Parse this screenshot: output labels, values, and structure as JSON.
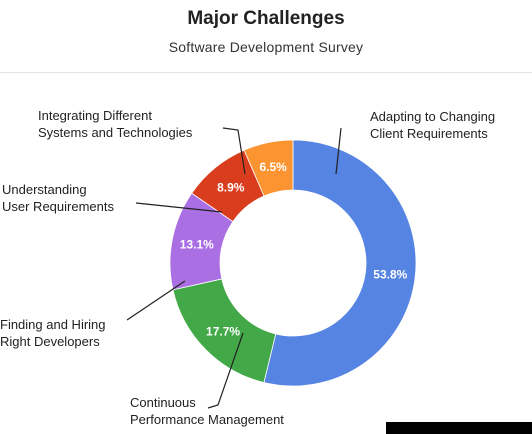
{
  "chart_data": {
    "type": "pie",
    "donut": true,
    "title": "Major Challenges",
    "subtitle": "Software Development Survey",
    "slices": [
      {
        "label": [
          "Adapting to Changing",
          "Client Requirements"
        ],
        "value": 53.8,
        "display": "53.8%",
        "color": "#5584e3"
      },
      {
        "label": [
          "Continuous",
          "Performance Management"
        ],
        "value": 17.7,
        "display": "17.7%",
        "color": "#43a848"
      },
      {
        "label": [
          "Finding and Hiring",
          "Right Developers"
        ],
        "value": 13.1,
        "display": "13.1%",
        "color": "#ab6fe4"
      },
      {
        "label": [
          "Understanding",
          "User Requirements"
        ],
        "value": 8.9,
        "display": "8.9%",
        "color": "#d93d1e"
      },
      {
        "label": [
          "Integrating Different",
          "Systems and Technologies"
        ],
        "value": 6.5,
        "display": "6.5%",
        "color": "#fb9431"
      }
    ]
  }
}
